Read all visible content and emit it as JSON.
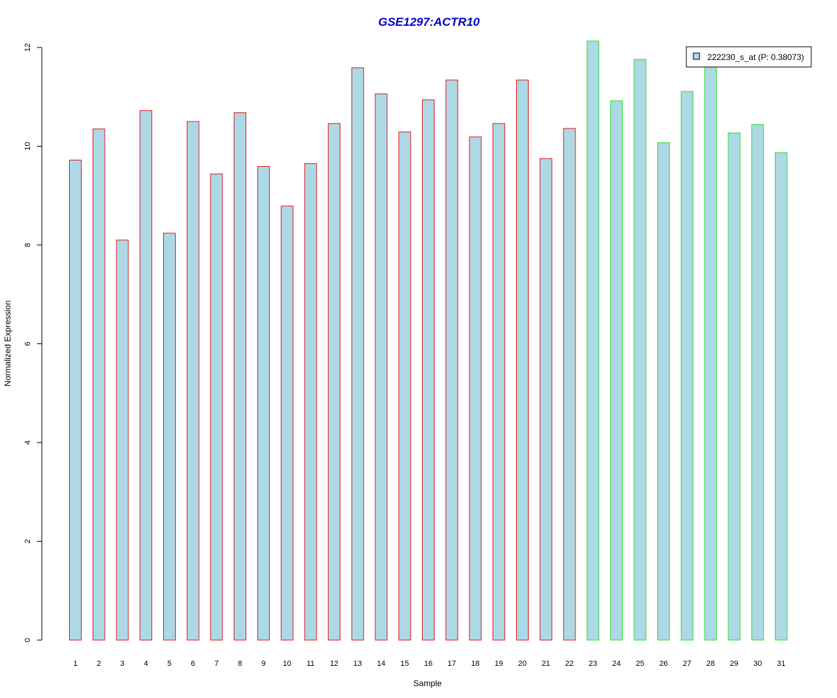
{
  "chart_data": {
    "type": "bar",
    "title": "GSE1297:ACTR10",
    "xlabel": "Sample",
    "ylabel": "Normalized Expression",
    "ylim": [
      0,
      12
    ],
    "yticks": [
      0,
      2,
      4,
      6,
      8,
      10,
      12
    ],
    "categories": [
      "1",
      "2",
      "3",
      "4",
      "5",
      "6",
      "7",
      "8",
      "9",
      "10",
      "11",
      "12",
      "13",
      "14",
      "15",
      "16",
      "17",
      "18",
      "19",
      "20",
      "21",
      "22",
      "23",
      "24",
      "25",
      "26",
      "27",
      "28",
      "29",
      "30",
      "31"
    ],
    "series": [
      {
        "name": "222230_s_at (P: 0.38073)",
        "values": [
          9.72,
          10.35,
          8.1,
          10.72,
          8.24,
          10.5,
          9.44,
          10.68,
          9.59,
          8.79,
          9.65,
          10.46,
          11.59,
          11.06,
          10.29,
          10.94,
          11.34,
          10.19,
          10.46,
          11.34,
          9.75,
          10.36,
          12.13,
          10.92,
          11.76,
          10.07,
          11.11,
          11.62,
          10.27,
          10.44,
          9.87
        ]
      }
    ],
    "group_colors": [
      "#e31a1c",
      "#e31a1c",
      "#e31a1c",
      "#e31a1c",
      "#e31a1c",
      "#e31a1c",
      "#e31a1c",
      "#e31a1c",
      "#e31a1c",
      "#e31a1c",
      "#e31a1c",
      "#e31a1c",
      "#e31a1c",
      "#e31a1c",
      "#e31a1c",
      "#e31a1c",
      "#e31a1c",
      "#e31a1c",
      "#e31a1c",
      "#e31a1c",
      "#e31a1c",
      "#e31a1c",
      "#33dd33",
      "#33dd33",
      "#33dd33",
      "#33dd33",
      "#33dd33",
      "#33dd33",
      "#33dd33",
      "#33dd33",
      "#33dd33"
    ],
    "fill_color": "#add8e6",
    "title_color": "#0000cc",
    "grid": false,
    "legend_position": "top-right"
  }
}
